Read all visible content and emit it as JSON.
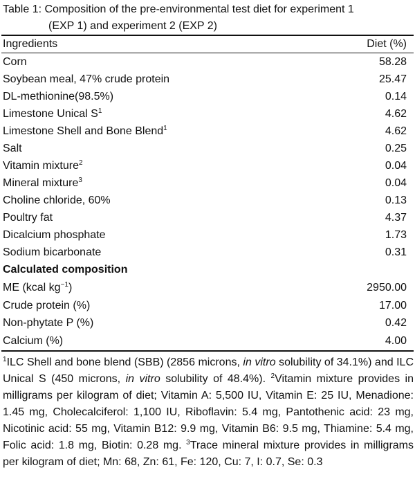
{
  "caption": {
    "line1": "Table 1: Composition of the pre-environmental test diet for experiment 1",
    "line2": "(EXP 1) and experiment 2 (EXP 2)"
  },
  "header": {
    "ingredients": "Ingredients",
    "diet": "Diet (%)"
  },
  "rows": [
    {
      "name": "Corn",
      "value": "58.28"
    },
    {
      "name": "Soybean meal, 47% crude protein",
      "value": "25.47"
    },
    {
      "name": "DL-methionine(98.5%)",
      "value": "0.14"
    },
    {
      "name": "Limestone Unical S",
      "sup": "1",
      "value": "4.62"
    },
    {
      "name": "Limestone Shell and Bone Blend",
      "sup": "1",
      "value": "4.62"
    },
    {
      "name": "Salt",
      "value": "0.25"
    },
    {
      "name": "Vitamin mixture",
      "sup": "2",
      "value": "0.04"
    },
    {
      "name": "Mineral mixture",
      "sup": "3",
      "value": "0.04"
    },
    {
      "name": "Choline chloride, 60%",
      "value": "0.13"
    },
    {
      "name": "Poultry fat",
      "value": "4.37"
    },
    {
      "name": "Dicalcium phosphate",
      "value": "1.73"
    },
    {
      "name": "Sodium bicarbonate",
      "value": "0.31"
    }
  ],
  "calculated_title": "Calculated composition",
  "calculated": [
    {
      "name": "ME (kcal kg",
      "sup": "−1",
      "suffix": ")",
      "value": "2950.00"
    },
    {
      "name": "Crude protein (%)",
      "value": "17.00"
    },
    {
      "name": "Non-phytate P (%)",
      "value": "0.42"
    },
    {
      "name": "Calcium (%)",
      "value": "4.00"
    }
  ],
  "footnote": {
    "s1_sup": "1",
    "s1_a": "ILC Shell and bone blend (SBB) (2856 microns, ",
    "s1_i1": "in vitro",
    "s1_b": " solubility of 34.1%) and ILC Unical S (450 microns, ",
    "s1_i2": "in vitro",
    "s1_c": " solubility of 48.4%). ",
    "s2_sup": "2",
    "s2": "Vitamin mixture provides in milligrams per kilogram of diet; Vitamin A: 5,500 IU, Vitamin E: 25 IU, Menadione: 1.45 mg, Cholecalciferol: 1,100 IU, Riboflavin: 5.4 mg, Pantothenic acid: 23 mg, Nicotinic acid: 55 mg, Vitamin B12: 9.9 mg, Vitamin B6: 9.5 mg, Thiamine: 5.4 mg, Folic acid: 1.8 mg, Biotin: 0.28 mg. ",
    "s3_sup": "3",
    "s3": "Trace mineral mixture provides in milligrams per kilogram of diet; Mn: 68, Zn: 61, Fe: 120, Cu: 7, I: 0.7, Se: 0.3"
  }
}
